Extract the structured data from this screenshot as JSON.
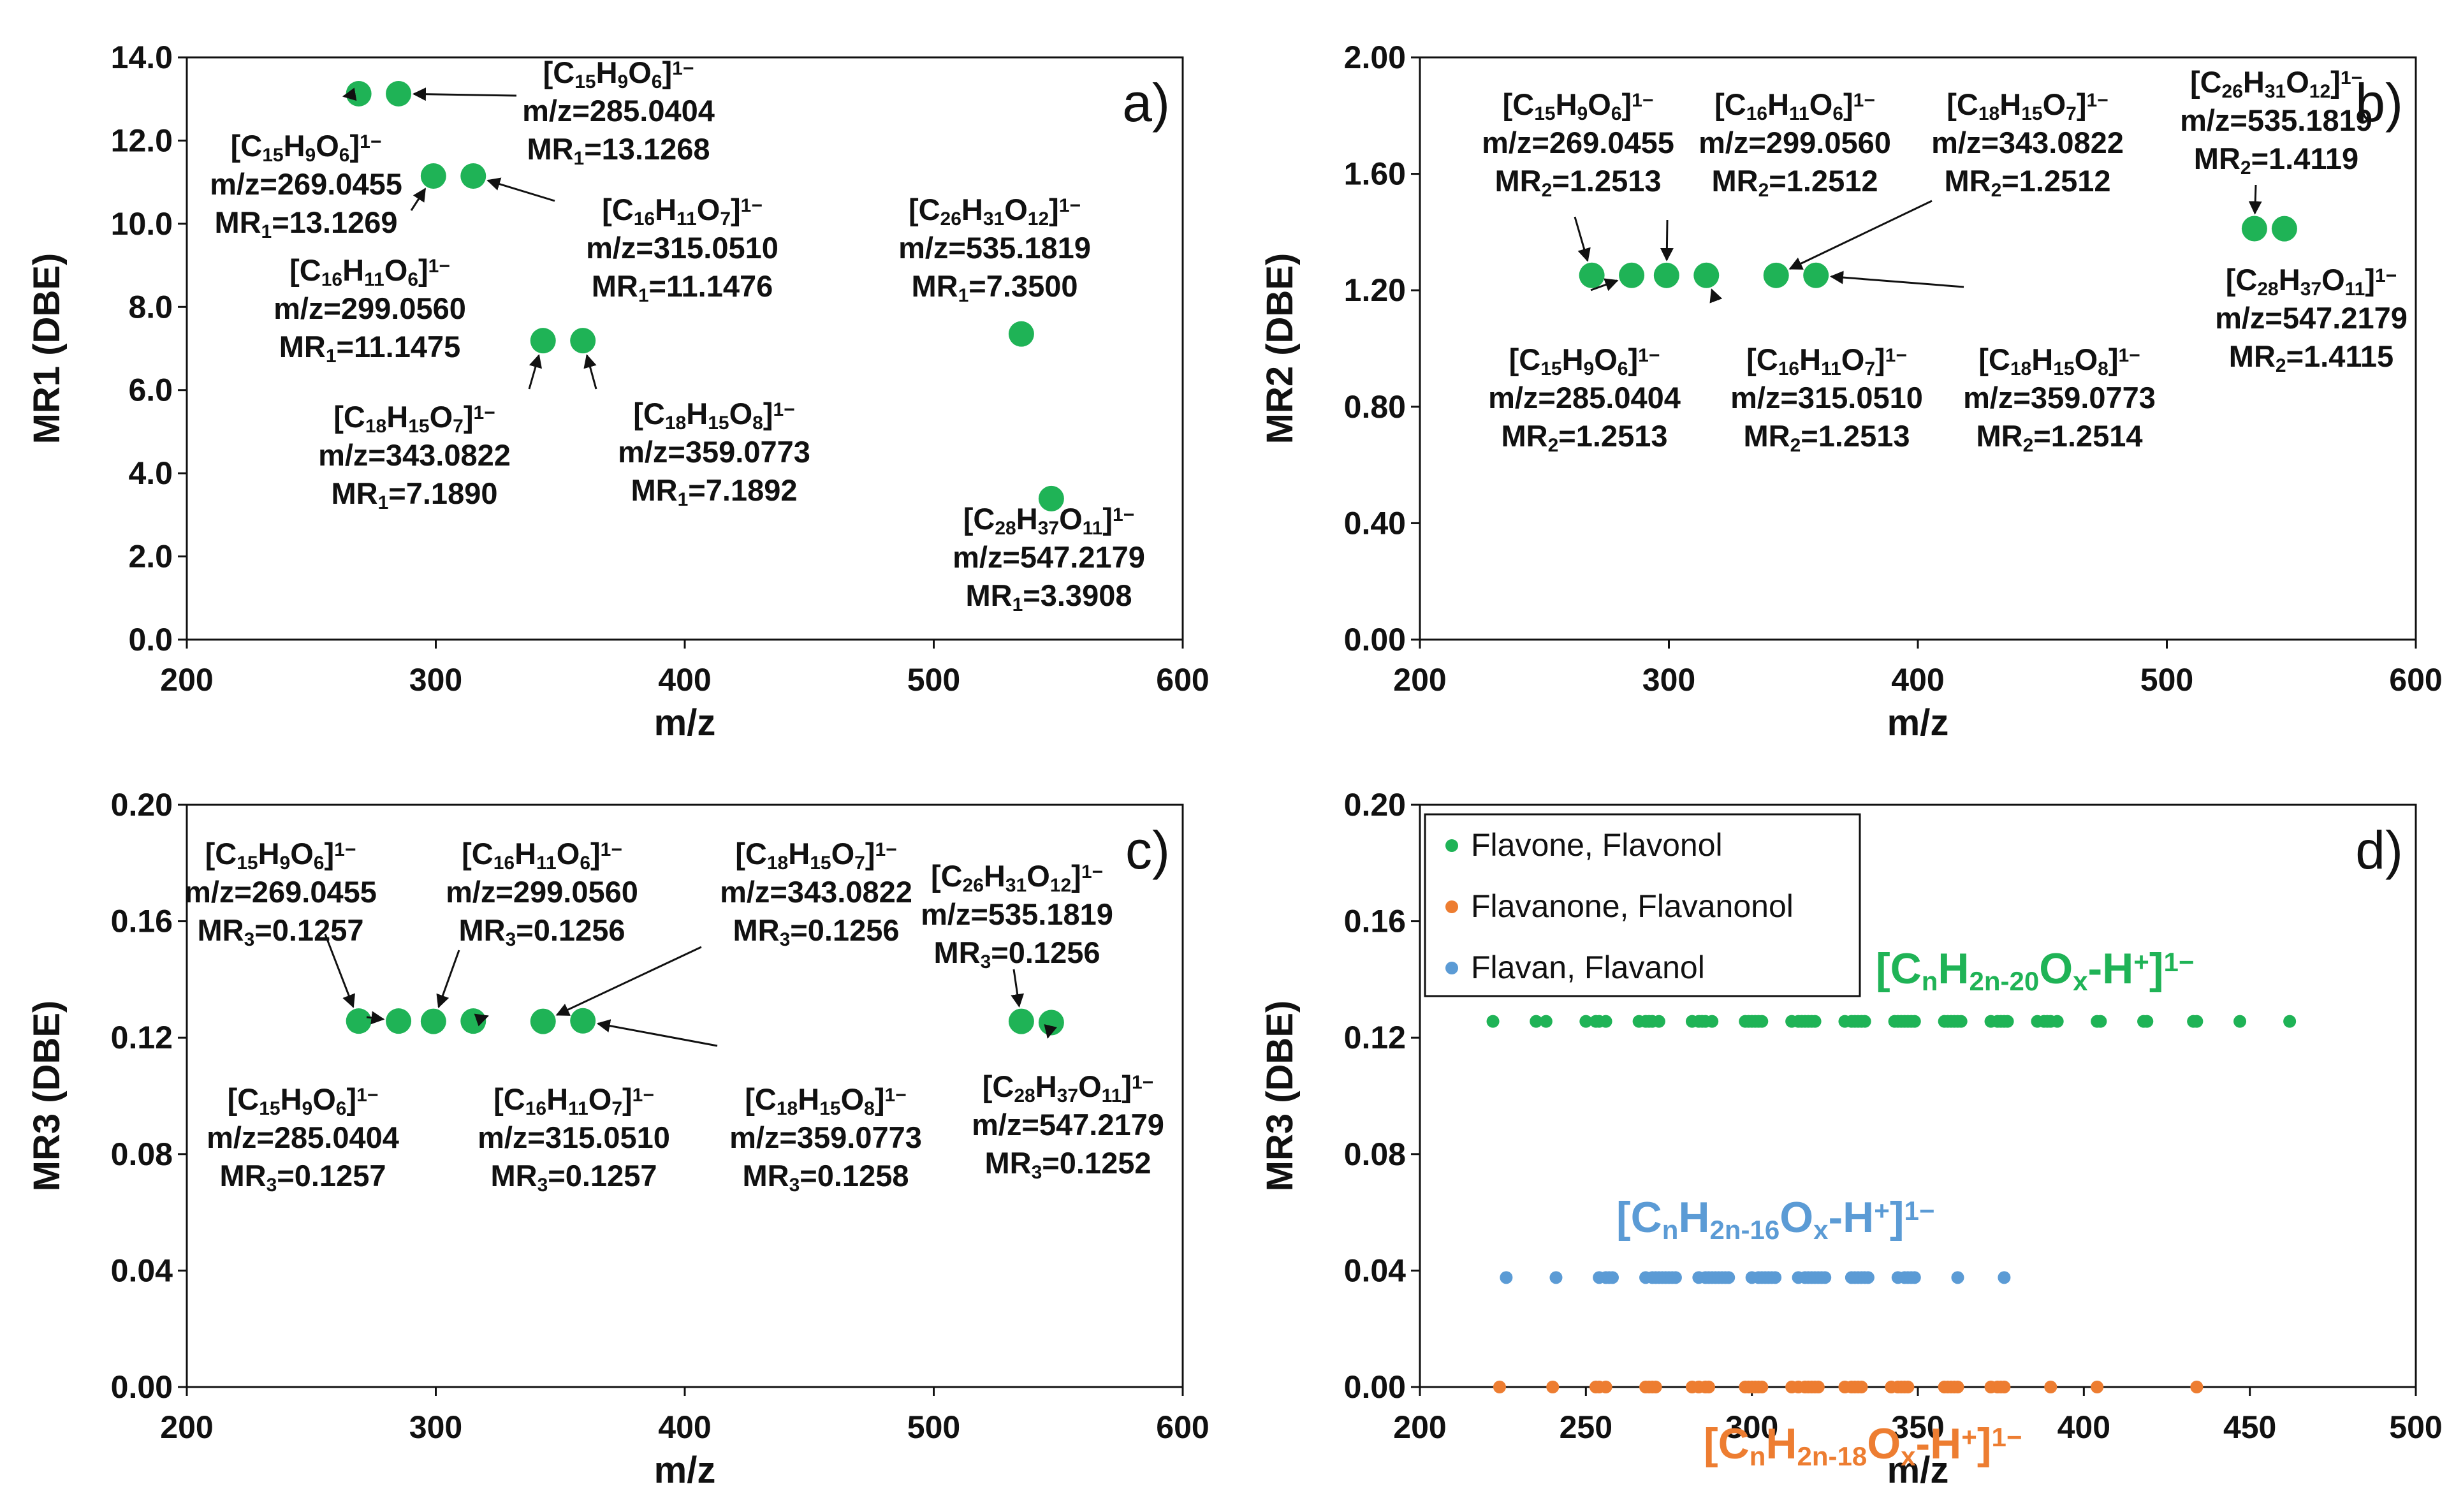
{
  "chart_data": [
    {
      "type": "scatter",
      "panel_label": "a)",
      "xlabel": "m/z",
      "ylabel": "MR1 (DBE)",
      "xlim": [
        200,
        600
      ],
      "ylim": [
        0,
        14
      ],
      "xticks": [
        "200",
        "300",
        "400",
        "500",
        "600"
      ],
      "yticks": [
        "0.0",
        "2.0",
        "4.0",
        "6.0",
        "8.0",
        "10.0",
        "12.0",
        "14.0"
      ],
      "color": "#1fb356",
      "points": [
        {
          "x": 269.0455,
          "y": 13.1269
        },
        {
          "x": 285.0404,
          "y": 13.1268
        },
        {
          "x": 299.056,
          "y": 11.1475
        },
        {
          "x": 315.051,
          "y": 11.1476
        },
        {
          "x": 343.0822,
          "y": 7.189
        },
        {
          "x": 359.0773,
          "y": 7.1892
        },
        {
          "x": 535.1819,
          "y": 7.35
        },
        {
          "x": 547.2179,
          "y": 3.3908
        }
      ],
      "annotations": [
        {
          "formula": [
            "[C",
            "15",
            "H",
            "9",
            "O",
            "6",
            "]",
            "1−"
          ],
          "mz": "m/z=269.0455",
          "mr": [
            "MR",
            "1",
            "=13.1269"
          ]
        },
        {
          "formula": [
            "[C",
            "15",
            "H",
            "9",
            "O",
            "6",
            "]",
            "1−"
          ],
          "mz": "m/z=285.0404",
          "mr": [
            "MR",
            "1",
            "=13.1268"
          ]
        },
        {
          "formula": [
            "[C",
            "16",
            "H",
            "11",
            "O",
            "6",
            "]",
            "1−"
          ],
          "mz": "m/z=299.0560",
          "mr": [
            "MR",
            "1",
            "=11.1475"
          ]
        },
        {
          "formula": [
            "[C",
            "16",
            "H",
            "11",
            "O",
            "7",
            "]",
            "1−"
          ],
          "mz": "m/z=315.0510",
          "mr": [
            "MR",
            "1",
            "=11.1476"
          ]
        },
        {
          "formula": [
            "[C",
            "18",
            "H",
            "15",
            "O",
            "7",
            "]",
            "1−"
          ],
          "mz": "m/z=343.0822",
          "mr": [
            "MR",
            "1",
            "=7.1890"
          ]
        },
        {
          "formula": [
            "[C",
            "18",
            "H",
            "15",
            "O",
            "8",
            "]",
            "1−"
          ],
          "mz": "m/z=359.0773",
          "mr": [
            "MR",
            "1",
            "=7.1892"
          ]
        },
        {
          "formula": [
            "[C",
            "26",
            "H",
            "31",
            "O",
            "12",
            "]",
            "1−"
          ],
          "mz": "m/z=535.1819",
          "mr": [
            "MR",
            "1",
            "=7.3500"
          ]
        },
        {
          "formula": [
            "[C",
            "28",
            "H",
            "37",
            "O",
            "11",
            "]",
            "1−"
          ],
          "mz": "m/z=547.2179",
          "mr": [
            "MR",
            "1",
            "=3.3908"
          ]
        }
      ]
    },
    {
      "type": "scatter",
      "panel_label": "b)",
      "xlabel": "m/z",
      "ylabel": "MR2 (DBE)",
      "xlim": [
        200,
        600
      ],
      "ylim": [
        0,
        2
      ],
      "xticks": [
        "200",
        "300",
        "400",
        "500",
        "600"
      ],
      "yticks": [
        "0.00",
        "0.40",
        "0.80",
        "1.20",
        "1.60",
        "2.00"
      ],
      "color": "#1fb356",
      "points": [
        {
          "x": 269.0455,
          "y": 1.2513
        },
        {
          "x": 285.0404,
          "y": 1.2513
        },
        {
          "x": 299.056,
          "y": 1.2512
        },
        {
          "x": 315.051,
          "y": 1.2513
        },
        {
          "x": 343.0822,
          "y": 1.2512
        },
        {
          "x": 359.0773,
          "y": 1.2514
        },
        {
          "x": 535.1819,
          "y": 1.4119
        },
        {
          "x": 547.2179,
          "y": 1.4115
        }
      ],
      "annotations": [
        {
          "formula": [
            "[C",
            "15",
            "H",
            "9",
            "O",
            "6",
            "]",
            "1−"
          ],
          "mz": "m/z=269.0455",
          "mr": [
            "MR",
            "2",
            "=1.2513"
          ]
        },
        {
          "formula": [
            "[C",
            "15",
            "H",
            "9",
            "O",
            "6",
            "]",
            "1−"
          ],
          "mz": "m/z=285.0404",
          "mr": [
            "MR",
            "2",
            "=1.2513"
          ]
        },
        {
          "formula": [
            "[C",
            "16",
            "H",
            "11",
            "O",
            "6",
            "]",
            "1−"
          ],
          "mz": "m/z=299.0560",
          "mr": [
            "MR",
            "2",
            "=1.2512"
          ]
        },
        {
          "formula": [
            "[C",
            "16",
            "H",
            "11",
            "O",
            "7",
            "]",
            "1−"
          ],
          "mz": "m/z=315.0510",
          "mr": [
            "MR",
            "2",
            "=1.2513"
          ]
        },
        {
          "formula": [
            "[C",
            "18",
            "H",
            "15",
            "O",
            "7",
            "]",
            "1−"
          ],
          "mz": "m/z=343.0822",
          "mr": [
            "MR",
            "2",
            "=1.2512"
          ]
        },
        {
          "formula": [
            "[C",
            "18",
            "H",
            "15",
            "O",
            "8",
            "]",
            "1−"
          ],
          "mz": "m/z=359.0773",
          "mr": [
            "MR",
            "2",
            "=1.2514"
          ]
        },
        {
          "formula": [
            "[C",
            "26",
            "H",
            "31",
            "O",
            "12",
            "]",
            "1−"
          ],
          "mz": "m/z=535.1819",
          "mr": [
            "MR",
            "2",
            "=1.4119"
          ]
        },
        {
          "formula": [
            "[C",
            "28",
            "H",
            "37",
            "O",
            "11",
            "]",
            "1−"
          ],
          "mz": "m/z=547.2179",
          "mr": [
            "MR",
            "2",
            "=1.4115"
          ]
        }
      ]
    },
    {
      "type": "scatter",
      "panel_label": "c)",
      "xlabel": "m/z",
      "ylabel": "MR3 (DBE)",
      "xlim": [
        200,
        600
      ],
      "ylim": [
        0,
        0.2
      ],
      "xticks": [
        "200",
        "300",
        "400",
        "500",
        "600"
      ],
      "yticks": [
        "0.00",
        "0.04",
        "0.08",
        "0.12",
        "0.16",
        "0.20"
      ],
      "color": "#1fb356",
      "points": [
        {
          "x": 269.0455,
          "y": 0.1257
        },
        {
          "x": 285.0404,
          "y": 0.1257
        },
        {
          "x": 299.056,
          "y": 0.1256
        },
        {
          "x": 315.051,
          "y": 0.1257
        },
        {
          "x": 343.0822,
          "y": 0.1256
        },
        {
          "x": 359.0773,
          "y": 0.1258
        },
        {
          "x": 535.1819,
          "y": 0.1256
        },
        {
          "x": 547.2179,
          "y": 0.1252
        }
      ],
      "annotations": [
        {
          "formula": [
            "[C",
            "15",
            "H",
            "9",
            "O",
            "6",
            "]",
            "1−"
          ],
          "mz": "m/z=269.0455",
          "mr": [
            "MR",
            "3",
            "=0.1257"
          ]
        },
        {
          "formula": [
            "[C",
            "15",
            "H",
            "9",
            "O",
            "6",
            "]",
            "1−"
          ],
          "mz": "m/z=285.0404",
          "mr": [
            "MR",
            "3",
            "=0.1257"
          ]
        },
        {
          "formula": [
            "[C",
            "16",
            "H",
            "11",
            "O",
            "6",
            "]",
            "1−"
          ],
          "mz": "m/z=299.0560",
          "mr": [
            "MR",
            "3",
            "=0.1256"
          ]
        },
        {
          "formula": [
            "[C",
            "16",
            "H",
            "11",
            "O",
            "7",
            "]",
            "1−"
          ],
          "mz": "m/z=315.0510",
          "mr": [
            "MR",
            "3",
            "=0.1257"
          ]
        },
        {
          "formula": [
            "[C",
            "18",
            "H",
            "15",
            "O",
            "7",
            "]",
            "1−"
          ],
          "mz": "m/z=343.0822",
          "mr": [
            "MR",
            "3",
            "=0.1256"
          ]
        },
        {
          "formula": [
            "[C",
            "18",
            "H",
            "15",
            "O",
            "8",
            "]",
            "1−"
          ],
          "mz": "m/z=359.0773",
          "mr": [
            "MR",
            "3",
            "=0.1258"
          ]
        },
        {
          "formula": [
            "[C",
            "26",
            "H",
            "31",
            "O",
            "12",
            "]",
            "1−"
          ],
          "mz": "m/z=535.1819",
          "mr": [
            "MR",
            "3",
            "=0.1256"
          ]
        },
        {
          "formula": [
            "[C",
            "28",
            "H",
            "37",
            "O",
            "11",
            "]",
            "1−"
          ],
          "mz": "m/z=547.2179",
          "mr": [
            "MR",
            "3",
            "=0.1252"
          ]
        }
      ]
    },
    {
      "type": "scatter",
      "panel_label": "d)",
      "xlabel": "m/z",
      "ylabel": "MR3 (DBE)",
      "xlim": [
        200,
        500
      ],
      "ylim": [
        0,
        0.2
      ],
      "xticks": [
        "200",
        "250",
        "300",
        "350",
        "400",
        "450",
        "500"
      ],
      "yticks": [
        "0.00",
        "0.04",
        "0.08",
        "0.12",
        "0.16",
        "0.20"
      ],
      "legend_position": "top-left",
      "series": [
        {
          "name": "Flavone, Flavonol",
          "color": "#1fb356",
          "formula": [
            "[C",
            "n",
            "H",
            "2n-20",
            "O",
            "x",
            "-H",
            "+",
            "]",
            "1−"
          ],
          "y": 0.1256,
          "x": [
            222,
            235,
            238,
            250,
            253,
            254,
            256,
            266,
            268,
            269,
            270,
            272,
            282,
            284,
            285,
            286,
            288,
            298,
            299,
            300,
            301,
            302,
            303,
            312,
            314,
            315,
            316,
            317,
            318,
            319,
            328,
            330,
            331,
            332,
            333,
            334,
            343,
            344,
            345,
            346,
            347,
            348,
            349,
            358,
            359,
            360,
            361,
            362,
            363,
            372,
            374,
            375,
            376,
            377,
            386,
            388,
            389,
            390,
            392,
            404,
            405,
            418,
            419,
            433,
            434,
            447,
            462
          ]
        },
        {
          "name": "Flavanone, Flavanonol",
          "color": "#ed7d31",
          "formula": [
            "[C",
            "n",
            "H",
            "2n-18",
            "O",
            "x",
            "-H",
            "+",
            "]",
            "1−"
          ],
          "y": 0.0,
          "x": [
            224,
            240,
            253,
            254,
            256,
            268,
            269,
            270,
            271,
            282,
            284,
            286,
            287,
            298,
            299,
            300,
            301,
            302,
            303,
            312,
            314,
            316,
            317,
            318,
            319,
            320,
            328,
            330,
            331,
            332,
            333,
            342,
            344,
            345,
            346,
            347,
            358,
            359,
            360,
            361,
            362,
            372,
            374,
            375,
            376,
            390,
            404,
            434
          ]
        },
        {
          "name": "Flavan, Flavanol",
          "color": "#5b9bd5",
          "formula": [
            "[C",
            "n",
            "H",
            "2n-16",
            "O",
            "x",
            "-H",
            "+",
            "]",
            "1−"
          ],
          "y": 0.0376,
          "x": [
            226,
            241,
            254,
            256,
            257,
            258,
            268,
            270,
            271,
            272,
            273,
            274,
            275,
            276,
            277,
            284,
            286,
            287,
            288,
            289,
            290,
            291,
            292,
            293,
            300,
            302,
            303,
            304,
            305,
            306,
            307,
            314,
            316,
            317,
            318,
            319,
            320,
            321,
            322,
            330,
            331,
            332,
            333,
            334,
            335,
            344,
            346,
            347,
            348,
            349,
            362,
            376
          ]
        }
      ]
    }
  ]
}
